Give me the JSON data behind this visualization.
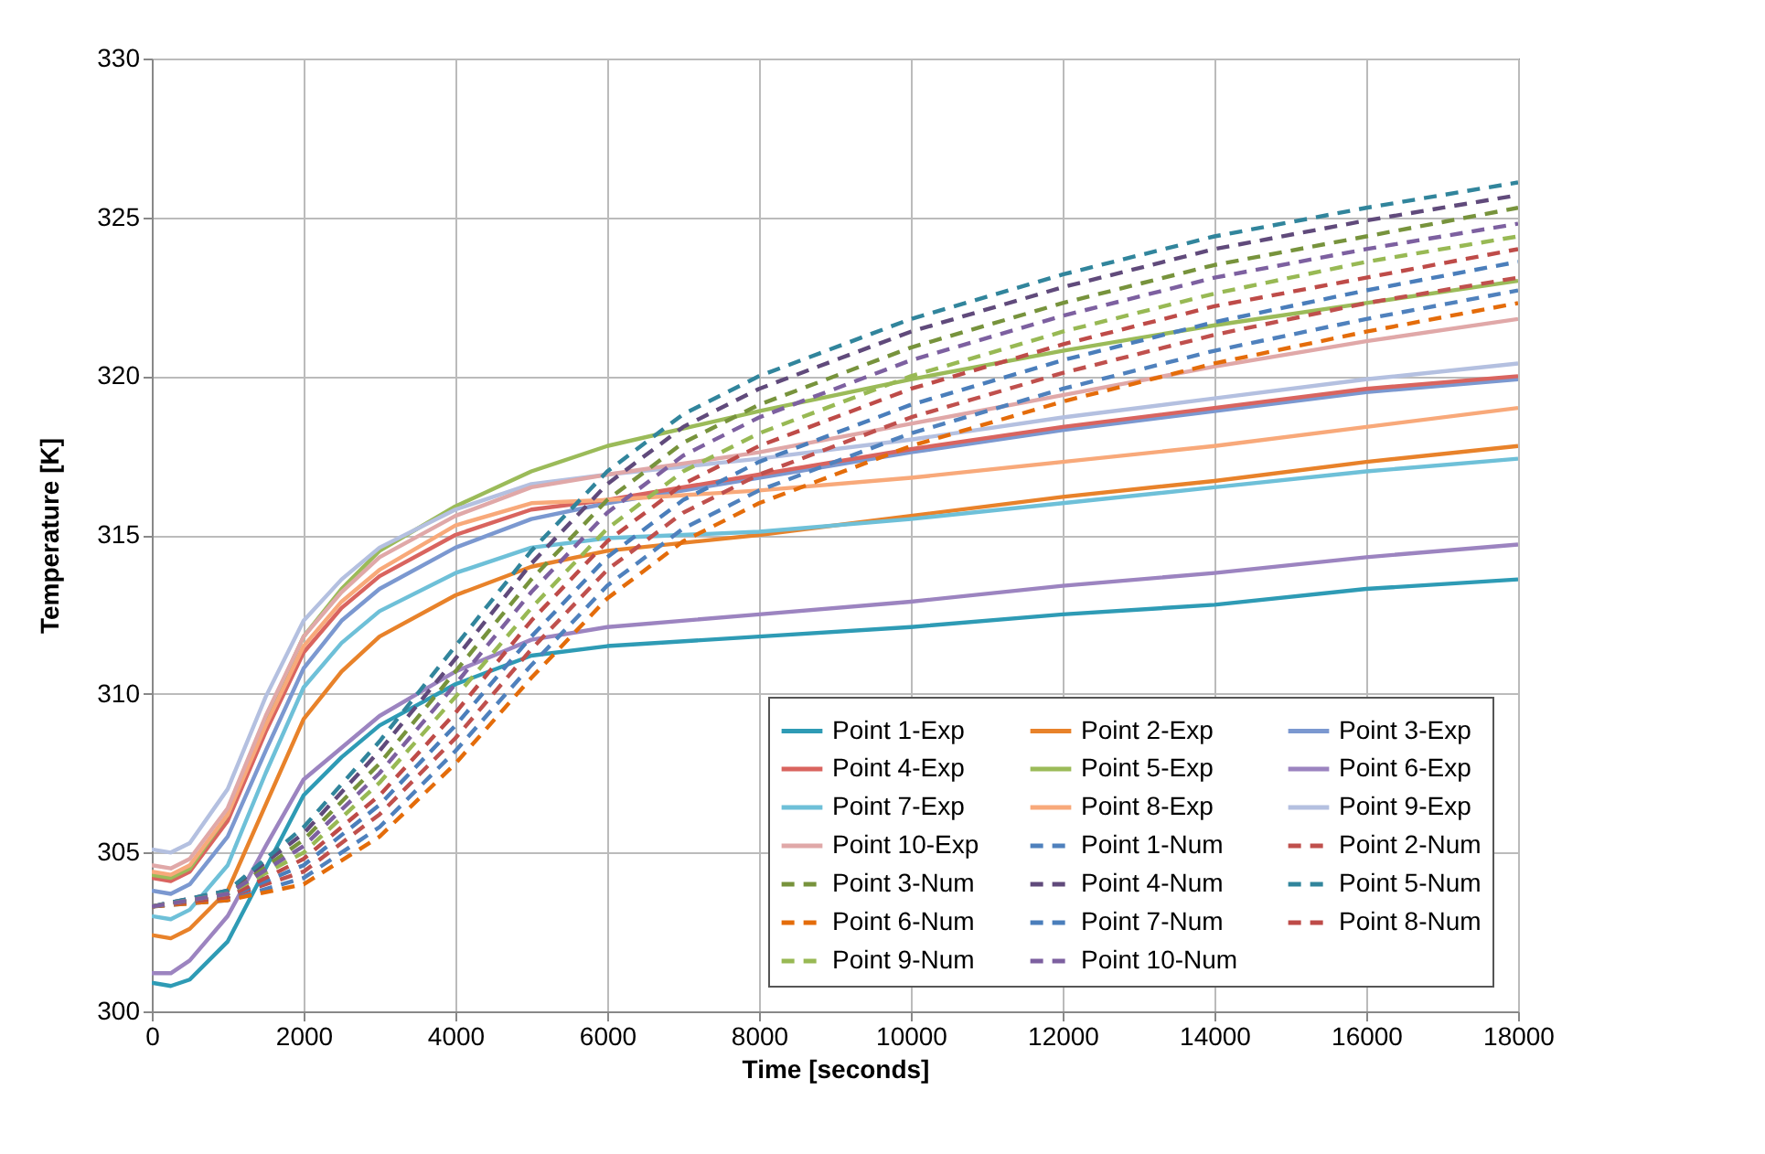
{
  "chart_data": {
    "type": "line",
    "xlabel": "Time [seconds]",
    "ylabel": "Temperature [K]",
    "xlim": [
      0,
      18000
    ],
    "xticks": [
      0,
      2000,
      4000,
      6000,
      8000,
      10000,
      12000,
      14000,
      16000,
      18000
    ],
    "ylim": [
      300,
      330
    ],
    "yticks": [
      300,
      305,
      310,
      315,
      320,
      325,
      330
    ],
    "grid": true,
    "legend": "bottom right",
    "marker": "none",
    "series": [
      {
        "name": "Point 1-Exp",
        "color": "#2e9bb5",
        "line_style": "solid",
        "x": [
          0,
          250,
          500,
          1000,
          1500,
          2000,
          2500,
          3000,
          4000,
          5000,
          6000,
          8000,
          10000,
          12000,
          14000,
          16000,
          18000
        ],
        "values": [
          300.9,
          300.8,
          301.0,
          302.2,
          304.5,
          306.8,
          308.0,
          309.0,
          310.3,
          311.2,
          311.5,
          311.8,
          312.1,
          312.5,
          312.8,
          313.3,
          313.6
        ]
      },
      {
        "name": "Point 2-Exp",
        "color": "#e8822a",
        "line_style": "solid",
        "x": [
          0,
          250,
          500,
          1000,
          1500,
          2000,
          2500,
          3000,
          4000,
          5000,
          6000,
          8000,
          10000,
          12000,
          14000,
          16000,
          18000
        ],
        "values": [
          302.4,
          302.3,
          302.6,
          303.8,
          306.5,
          309.2,
          310.7,
          311.8,
          313.1,
          314.0,
          314.5,
          315.0,
          315.6,
          316.2,
          316.7,
          317.3,
          317.8
        ]
      },
      {
        "name": "Point 3-Exp",
        "color": "#7b98d0",
        "line_style": "solid",
        "x": [
          0,
          250,
          500,
          1000,
          1500,
          2000,
          2500,
          3000,
          4000,
          5000,
          6000,
          8000,
          10000,
          12000,
          14000,
          16000,
          18000
        ],
        "values": [
          303.8,
          303.7,
          304.0,
          305.5,
          308.2,
          310.8,
          312.3,
          313.3,
          314.6,
          315.5,
          316.0,
          316.8,
          317.6,
          318.3,
          318.9,
          319.5,
          319.9
        ]
      },
      {
        "name": "Point 4-Exp",
        "color": "#d9645f",
        "line_style": "solid",
        "x": [
          0,
          250,
          500,
          1000,
          1500,
          2000,
          2500,
          3000,
          4000,
          5000,
          6000,
          8000,
          10000,
          12000,
          14000,
          16000,
          18000
        ],
        "values": [
          304.2,
          304.1,
          304.4,
          306.0,
          308.8,
          311.3,
          312.7,
          313.7,
          315.0,
          315.8,
          316.1,
          316.9,
          317.7,
          318.4,
          319.0,
          319.6,
          320.0
        ]
      },
      {
        "name": "Point 5-Exp",
        "color": "#9bbb59",
        "line_style": "solid",
        "x": [
          0,
          250,
          500,
          1000,
          1500,
          2000,
          2500,
          3000,
          4000,
          5000,
          6000,
          8000,
          10000,
          12000,
          14000,
          16000,
          18000
        ],
        "values": [
          304.3,
          304.2,
          304.5,
          306.2,
          309.2,
          311.8,
          313.3,
          314.5,
          315.9,
          317.0,
          317.8,
          318.9,
          319.9,
          320.8,
          321.6,
          322.3,
          323.0
        ]
      },
      {
        "name": "Point 6-Exp",
        "color": "#9c84c0",
        "line_style": "solid",
        "x": [
          0,
          250,
          500,
          1000,
          1500,
          2000,
          2500,
          3000,
          4000,
          5000,
          6000,
          8000,
          10000,
          12000,
          14000,
          16000,
          18000
        ],
        "values": [
          301.2,
          301.2,
          301.6,
          303.0,
          305.2,
          307.3,
          308.3,
          309.3,
          310.7,
          311.7,
          312.1,
          312.5,
          312.9,
          313.4,
          313.8,
          314.3,
          314.7
        ]
      },
      {
        "name": "Point 7-Exp",
        "color": "#6ec0d8",
        "line_style": "solid",
        "x": [
          0,
          250,
          500,
          1000,
          1500,
          2000,
          2500,
          3000,
          4000,
          5000,
          6000,
          8000,
          10000,
          12000,
          14000,
          16000,
          18000
        ],
        "values": [
          303.0,
          302.9,
          303.2,
          304.6,
          307.5,
          310.2,
          311.6,
          312.6,
          313.8,
          314.6,
          314.9,
          315.1,
          315.5,
          316.0,
          316.5,
          317.0,
          317.4
        ]
      },
      {
        "name": "Point 8-Exp",
        "color": "#f8a97a",
        "line_style": "solid",
        "x": [
          0,
          250,
          500,
          1000,
          1500,
          2000,
          2500,
          3000,
          4000,
          5000,
          6000,
          8000,
          10000,
          12000,
          14000,
          16000,
          18000
        ],
        "values": [
          304.4,
          304.3,
          304.6,
          306.2,
          309.0,
          311.5,
          312.9,
          313.9,
          315.3,
          316.0,
          316.1,
          316.4,
          316.8,
          317.3,
          317.8,
          318.4,
          319.0
        ]
      },
      {
        "name": "Point 9-Exp",
        "color": "#b4c0e0",
        "line_style": "solid",
        "x": [
          0,
          250,
          500,
          1000,
          1500,
          2000,
          2500,
          3000,
          4000,
          5000,
          6000,
          8000,
          10000,
          12000,
          14000,
          16000,
          18000
        ],
        "values": [
          305.1,
          305.0,
          305.3,
          307.0,
          309.9,
          312.3,
          313.6,
          314.6,
          315.8,
          316.6,
          316.9,
          317.4,
          318.0,
          318.7,
          319.3,
          319.9,
          320.4
        ]
      },
      {
        "name": "Point 10-Exp",
        "color": "#e0a8a8",
        "line_style": "solid",
        "x": [
          0,
          250,
          500,
          1000,
          1500,
          2000,
          2500,
          3000,
          4000,
          5000,
          6000,
          8000,
          10000,
          12000,
          14000,
          16000,
          18000
        ],
        "values": [
          304.6,
          304.5,
          304.8,
          306.4,
          309.3,
          311.8,
          313.2,
          314.3,
          315.6,
          316.5,
          316.9,
          317.6,
          318.5,
          319.4,
          320.3,
          321.1,
          321.8
        ]
      },
      {
        "name": "Point 1-Num",
        "color": "#4f81bd",
        "line_style": "dashed",
        "x": [
          0,
          1000,
          2000,
          3000,
          4000,
          5000,
          6000,
          7000,
          8000,
          10000,
          12000,
          14000,
          16000,
          18000
        ],
        "values": [
          303.3,
          303.5,
          304.2,
          305.8,
          308.2,
          310.9,
          313.4,
          315.2,
          316.4,
          318.2,
          319.6,
          320.8,
          321.8,
          322.7
        ]
      },
      {
        "name": "Point 2-Num",
        "color": "#c0504d",
        "line_style": "dashed",
        "x": [
          0,
          1000,
          2000,
          3000,
          4000,
          5000,
          6000,
          7000,
          8000,
          10000,
          12000,
          14000,
          16000,
          18000
        ],
        "values": [
          303.3,
          303.6,
          304.4,
          306.2,
          308.6,
          311.4,
          313.9,
          315.7,
          316.9,
          318.7,
          320.1,
          321.3,
          322.3,
          323.1
        ]
      },
      {
        "name": "Point 3-Num",
        "color": "#77933c",
        "line_style": "dashed",
        "x": [
          0,
          1000,
          2000,
          3000,
          4000,
          5000,
          6000,
          7000,
          8000,
          10000,
          12000,
          14000,
          16000,
          18000
        ],
        "values": [
          303.3,
          303.7,
          305.4,
          307.8,
          310.7,
          313.6,
          316.1,
          317.9,
          319.1,
          320.9,
          322.3,
          323.5,
          324.4,
          325.3
        ]
      },
      {
        "name": "Point 4-Num",
        "color": "#604a7b",
        "line_style": "dashed",
        "x": [
          0,
          1000,
          2000,
          3000,
          4000,
          5000,
          6000,
          7000,
          8000,
          10000,
          12000,
          14000,
          16000,
          18000
        ],
        "values": [
          303.3,
          303.8,
          305.6,
          308.2,
          311.1,
          314.1,
          316.6,
          318.4,
          319.6,
          321.4,
          322.8,
          324.0,
          324.9,
          325.7
        ]
      },
      {
        "name": "Point 5-Num",
        "color": "#31859c",
        "line_style": "dashed",
        "x": [
          0,
          1000,
          2000,
          3000,
          4000,
          5000,
          6000,
          7000,
          8000,
          10000,
          12000,
          14000,
          16000,
          18000
        ],
        "values": [
          303.3,
          303.8,
          305.8,
          308.5,
          311.5,
          314.5,
          317.0,
          318.8,
          320.0,
          321.8,
          323.2,
          324.4,
          325.3,
          326.1
        ]
      },
      {
        "name": "Point 6-Num",
        "color": "#e46c0a",
        "line_style": "dashed",
        "x": [
          0,
          1000,
          2000,
          3000,
          4000,
          5000,
          6000,
          7000,
          8000,
          10000,
          12000,
          14000,
          16000,
          18000
        ],
        "values": [
          303.3,
          303.5,
          304.0,
          305.5,
          307.8,
          310.5,
          313.0,
          314.8,
          316.0,
          317.8,
          319.2,
          320.4,
          321.4,
          322.3
        ]
      },
      {
        "name": "Point 7-Num",
        "color": "#4a7ebb",
        "line_style": "dashed",
        "x": [
          0,
          1000,
          2000,
          3000,
          4000,
          5000,
          6000,
          7000,
          8000,
          10000,
          12000,
          14000,
          16000,
          18000
        ],
        "values": [
          303.3,
          303.6,
          304.6,
          306.5,
          309.0,
          311.8,
          314.3,
          316.1,
          317.3,
          319.1,
          320.5,
          321.7,
          322.7,
          323.6
        ]
      },
      {
        "name": "Point 8-Num",
        "color": "#be4b48",
        "line_style": "dashed",
        "x": [
          0,
          1000,
          2000,
          3000,
          4000,
          5000,
          6000,
          7000,
          8000,
          10000,
          12000,
          14000,
          16000,
          18000
        ],
        "values": [
          303.3,
          303.6,
          304.8,
          306.8,
          309.4,
          312.3,
          314.8,
          316.6,
          317.8,
          319.6,
          321.0,
          322.2,
          323.1,
          324.0
        ]
      },
      {
        "name": "Point 9-Num",
        "color": "#98b954",
        "line_style": "dashed",
        "x": [
          0,
          1000,
          2000,
          3000,
          4000,
          5000,
          6000,
          7000,
          8000,
          10000,
          12000,
          14000,
          16000,
          18000
        ],
        "values": [
          303.3,
          303.7,
          305.0,
          307.2,
          309.9,
          312.7,
          315.2,
          317.0,
          318.2,
          320.0,
          321.4,
          322.6,
          323.6,
          324.4
        ]
      },
      {
        "name": "Point 10-Num",
        "color": "#7d60a0",
        "line_style": "dashed",
        "x": [
          0,
          1000,
          2000,
          3000,
          4000,
          5000,
          6000,
          7000,
          8000,
          10000,
          12000,
          14000,
          16000,
          18000
        ],
        "values": [
          303.3,
          303.7,
          305.2,
          307.5,
          310.3,
          313.2,
          315.7,
          317.5,
          318.7,
          320.5,
          321.9,
          323.1,
          324.0,
          324.8
        ]
      }
    ]
  }
}
